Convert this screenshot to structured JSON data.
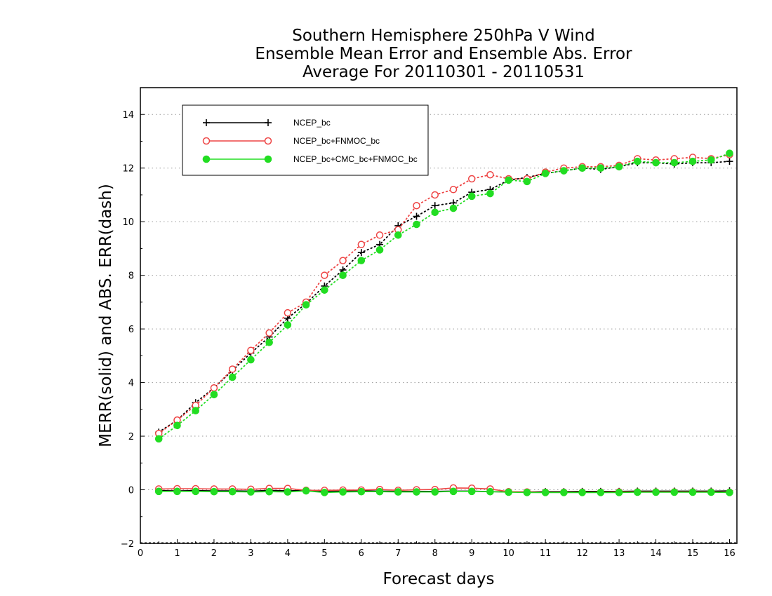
{
  "chart_data": {
    "type": "line",
    "title": [
      "Southern Hemisphere 250hPa V Wind",
      "Ensemble Mean Error and Ensemble Abs. Error",
      "Average For 20110301 - 20110531"
    ],
    "xlabel": "Forecast days",
    "ylabel": "MERR(solid) and ABS. ERR(dash)",
    "xlim": [
      0,
      16.2
    ],
    "ylim": [
      -2,
      15
    ],
    "xticks": [
      0,
      1,
      2,
      3,
      4,
      5,
      6,
      7,
      8,
      9,
      10,
      11,
      12,
      13,
      14,
      15,
      16
    ],
    "yticks": [
      -2,
      0,
      2,
      4,
      6,
      8,
      10,
      12,
      14
    ],
    "grid": true,
    "legend_position": "top-left",
    "x": [
      0.5,
      1,
      1.5,
      2,
      2.5,
      3,
      3.5,
      4,
      4.5,
      5,
      5.5,
      6,
      6.5,
      7,
      7.5,
      8,
      8.5,
      9,
      9.5,
      10,
      10.5,
      11,
      11.5,
      12,
      12.5,
      13,
      13.5,
      14,
      14.5,
      15,
      15.5,
      16
    ],
    "series": [
      {
        "name": "NCEP_bc",
        "color": "#000000",
        "marker": "plus",
        "abs_err": [
          2.15,
          2.6,
          3.25,
          3.8,
          4.45,
          5.1,
          5.7,
          6.4,
          6.95,
          7.6,
          8.2,
          8.85,
          9.15,
          9.85,
          10.2,
          10.6,
          10.7,
          11.1,
          11.2,
          11.55,
          11.65,
          11.8,
          11.9,
          12.0,
          11.95,
          12.05,
          12.2,
          12.2,
          12.15,
          12.2,
          12.2,
          12.25
        ],
        "mean_err": [
          -0.03,
          -0.04,
          -0.03,
          -0.04,
          -0.04,
          -0.05,
          -0.02,
          -0.04,
          -0.02,
          -0.05,
          -0.05,
          -0.04,
          -0.05,
          -0.06,
          -0.06,
          -0.06,
          -0.05,
          -0.05,
          -0.07,
          -0.08,
          -0.08,
          -0.07,
          -0.07,
          -0.06,
          -0.06,
          -0.06,
          -0.05,
          -0.05,
          -0.05,
          -0.05,
          -0.05,
          -0.04
        ]
      },
      {
        "name": "NCEP_bc+FNMOC_bc",
        "color": "#ee4444",
        "marker": "open-circle",
        "abs_err": [
          2.1,
          2.6,
          3.15,
          3.8,
          4.5,
          5.2,
          5.85,
          6.6,
          7.0,
          8.0,
          8.55,
          9.15,
          9.5,
          9.7,
          10.6,
          11.0,
          11.2,
          11.6,
          11.75,
          11.6,
          11.6,
          11.85,
          12.0,
          12.05,
          12.05,
          12.1,
          12.35,
          12.3,
          12.35,
          12.4,
          12.35,
          12.5
        ],
        "mean_err": [
          0.03,
          0.04,
          0.04,
          0.03,
          0.03,
          0.02,
          0.05,
          0.05,
          -0.02,
          -0.02,
          -0.01,
          -0.01,
          0.01,
          -0.02,
          0.0,
          0.01,
          0.07,
          0.06,
          0.03,
          -0.07,
          -0.08,
          -0.09,
          -0.09,
          -0.09,
          -0.09,
          -0.08,
          -0.08,
          -0.08,
          -0.08,
          -0.08,
          -0.08,
          -0.09
        ]
      },
      {
        "name": "NCEP_bc+CMC_bc+FNMOC_bc",
        "color": "#22dd22",
        "marker": "filled-circle",
        "abs_err": [
          1.9,
          2.4,
          2.95,
          3.55,
          4.2,
          4.85,
          5.5,
          6.15,
          6.9,
          7.45,
          8.0,
          8.55,
          8.95,
          9.5,
          9.9,
          10.35,
          10.5,
          10.95,
          11.05,
          11.55,
          11.5,
          11.8,
          11.9,
          12.0,
          12.0,
          12.05,
          12.25,
          12.2,
          12.2,
          12.25,
          12.3,
          12.55
        ],
        "mean_err": [
          -0.06,
          -0.06,
          -0.06,
          -0.07,
          -0.07,
          -0.08,
          -0.07,
          -0.08,
          -0.04,
          -0.1,
          -0.08,
          -0.07,
          -0.07,
          -0.08,
          -0.08,
          -0.08,
          -0.06,
          -0.06,
          -0.07,
          -0.09,
          -0.1,
          -0.1,
          -0.1,
          -0.1,
          -0.1,
          -0.1,
          -0.09,
          -0.09,
          -0.09,
          -0.09,
          -0.09,
          -0.1
        ]
      }
    ]
  }
}
